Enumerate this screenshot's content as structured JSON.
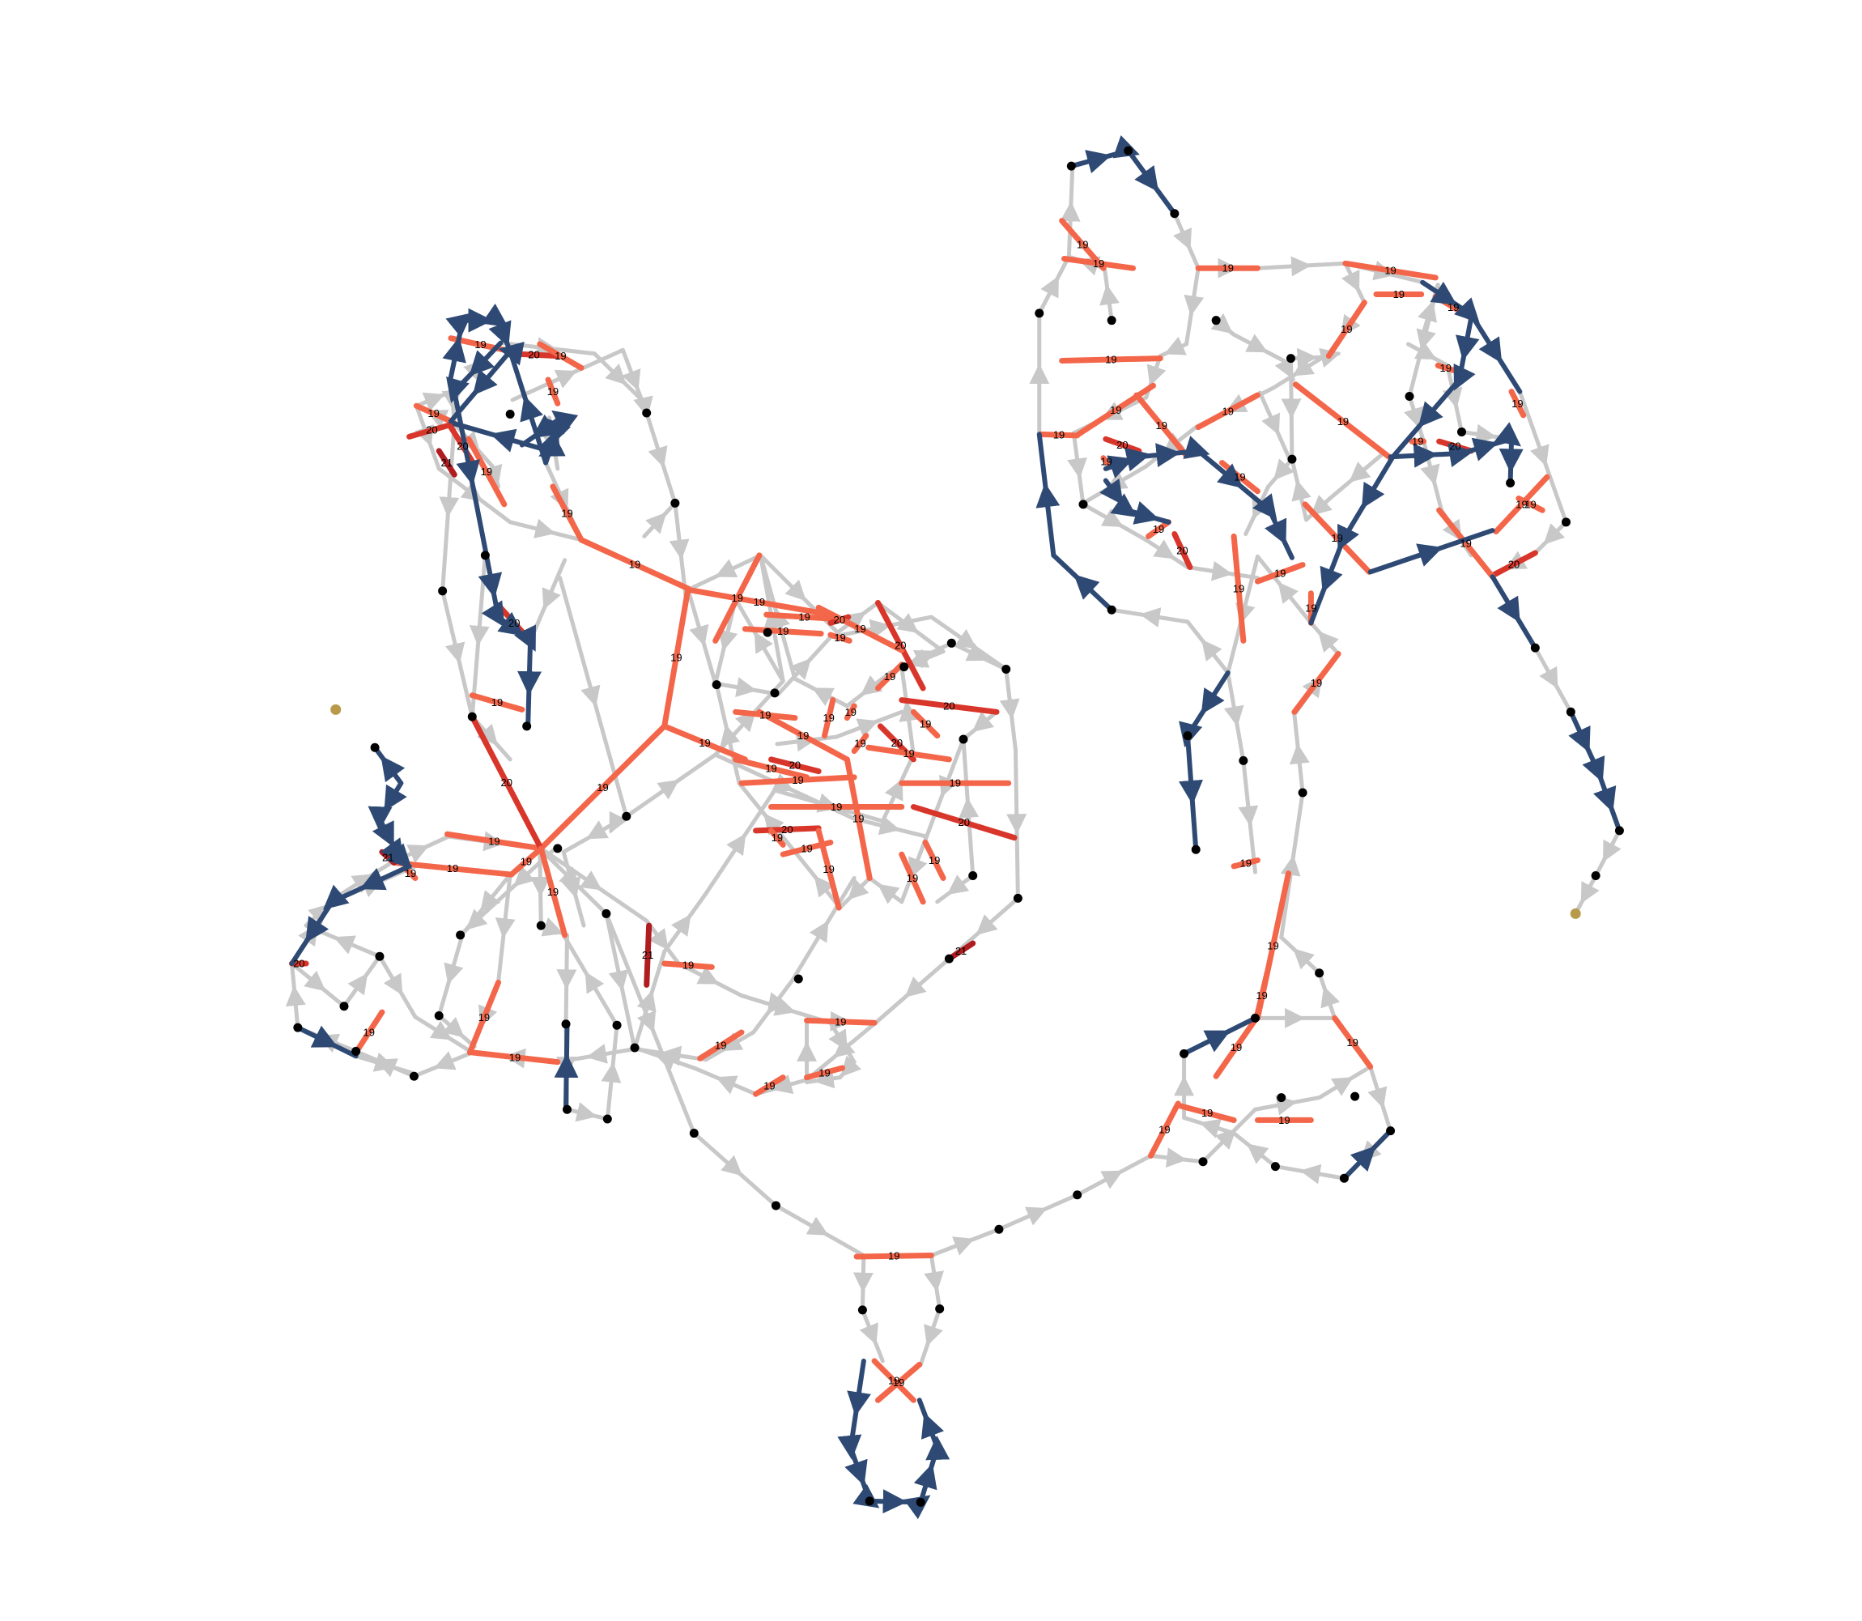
{
  "graph": {
    "colors": {
      "edge_default": "#c8c8c8",
      "edge_19": "#f4664a",
      "edge_20": "#d9362b",
      "edge_21": "#b01c1f",
      "edge_path": "#2e4a74",
      "node": "#000000",
      "node_terminal": "#b89a4a"
    },
    "nodes": [
      {
        "id": "n1",
        "kind": "terminal"
      },
      {
        "id": "n2",
        "kind": "terminal"
      },
      {
        "id": "n3",
        "kind": "normal"
      }
    ],
    "labels": [
      {
        "text": "19"
      },
      {
        "text": "19"
      },
      {
        "text": "19"
      },
      {
        "text": "19"
      },
      {
        "text": "19"
      },
      {
        "text": "19"
      },
      {
        "text": "19"
      },
      {
        "text": "20"
      },
      {
        "text": "19"
      },
      {
        "text": "19"
      },
      {
        "text": "19"
      },
      {
        "text": "19"
      },
      {
        "text": "20"
      },
      {
        "text": "21"
      },
      {
        "text": "19"
      },
      {
        "text": "19"
      },
      {
        "text": "19"
      },
      {
        "text": "19"
      },
      {
        "text": "19"
      },
      {
        "text": "19"
      },
      {
        "text": "21"
      },
      {
        "text": "19"
      },
      {
        "text": "21"
      },
      {
        "text": "19"
      },
      {
        "text": "19"
      },
      {
        "text": "19"
      },
      {
        "text": "19"
      },
      {
        "text": "20"
      },
      {
        "text": "20"
      },
      {
        "text": "19"
      },
      {
        "text": "19"
      },
      {
        "text": "20"
      },
      {
        "text": "19"
      },
      {
        "text": "20"
      },
      {
        "text": "19"
      },
      {
        "text": "19"
      },
      {
        "text": "19"
      },
      {
        "text": "19"
      },
      {
        "text": "19"
      },
      {
        "text": "20"
      },
      {
        "text": "19"
      },
      {
        "text": "19"
      },
      {
        "text": "19"
      },
      {
        "text": "19"
      },
      {
        "text": "19"
      },
      {
        "text": "19"
      },
      {
        "text": "19"
      },
      {
        "text": "20"
      },
      {
        "text": "19"
      },
      {
        "text": "19"
      },
      {
        "text": "19"
      },
      {
        "text": "19"
      },
      {
        "text": "20"
      },
      {
        "text": "19"
      },
      {
        "text": "19"
      },
      {
        "text": "20"
      },
      {
        "text": "19"
      },
      {
        "text": "19"
      },
      {
        "text": "19"
      },
      {
        "text": "20"
      },
      {
        "text": "21"
      },
      {
        "text": "20"
      },
      {
        "text": "19"
      },
      {
        "text": "19"
      },
      {
        "text": "20"
      },
      {
        "text": "19"
      },
      {
        "text": "19"
      },
      {
        "text": "19"
      },
      {
        "text": "19"
      },
      {
        "text": "19"
      },
      {
        "text": "19"
      },
      {
        "text": "19"
      },
      {
        "text": "19"
      },
      {
        "text": "19"
      },
      {
        "text": "19"
      },
      {
        "text": "19"
      },
      {
        "text": "19"
      },
      {
        "text": "19"
      },
      {
        "text": "19"
      },
      {
        "text": "20"
      },
      {
        "text": "19"
      },
      {
        "text": "19"
      },
      {
        "text": "20"
      },
      {
        "text": "19"
      },
      {
        "text": "19"
      },
      {
        "text": "19"
      },
      {
        "text": "19"
      },
      {
        "text": "19"
      },
      {
        "text": "19"
      },
      {
        "text": "20"
      },
      {
        "text": "19"
      },
      {
        "text": "19"
      },
      {
        "text": "20"
      },
      {
        "text": "19"
      },
      {
        "text": "19"
      },
      {
        "text": "19"
      },
      {
        "text": "19"
      },
      {
        "text": "19"
      },
      {
        "text": "19"
      },
      {
        "text": "19"
      },
      {
        "text": "19"
      },
      {
        "text": "19"
      },
      {
        "text": "19"
      },
      {
        "text": "19"
      },
      {
        "text": "19"
      },
      {
        "text": "19"
      },
      {
        "text": "19"
      },
      {
        "text": "19"
      },
      {
        "text": "19"
      },
      {
        "text": "19"
      }
    ]
  }
}
